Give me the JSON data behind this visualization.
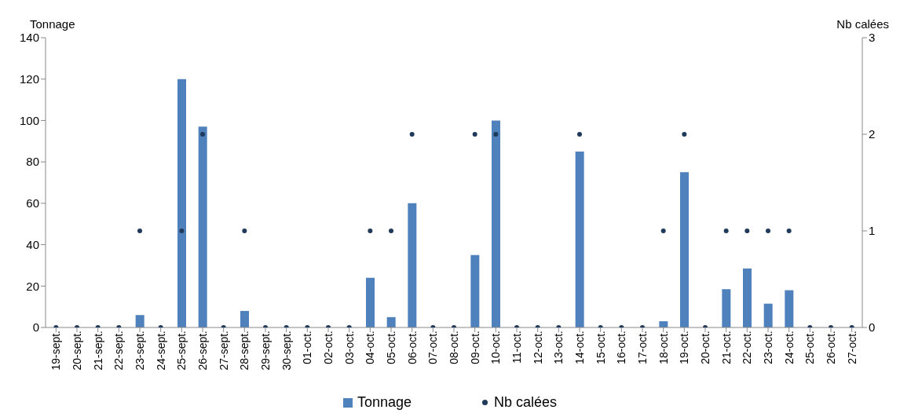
{
  "chart_data": {
    "type": "bar",
    "ylabel": "Tonnage",
    "y2label": "Nb calées",
    "categories": [
      "19-sept.",
      "20-sept.",
      "21-sept.",
      "22-sept.",
      "23-sept.",
      "24-sept.",
      "25-sept.",
      "26-sept.",
      "27-sept.",
      "28-sept.",
      "29-sept.",
      "30-sept.",
      "01-oct.",
      "02-oct.",
      "03-oct.",
      "04-oct.",
      "05-oct.",
      "06-oct.",
      "07-oct.",
      "08-oct.",
      "09-oct.",
      "10-oct.",
      "11-oct.",
      "12-oct.",
      "13-oct.",
      "14-oct.",
      "15-oct.",
      "16-oct.",
      "17-oct.",
      "18-oct.",
      "19-oct.",
      "20-oct.",
      "21-oct.",
      "22-oct.",
      "23-oct.",
      "24-oct.",
      "25-oct.",
      "26-oct.",
      "27-oct."
    ],
    "series": [
      {
        "name": "Tonnage",
        "color": "#4f81bd",
        "values": [
          0,
          0,
          0,
          0,
          6,
          0,
          120,
          97,
          0,
          8,
          0,
          0,
          0,
          0,
          0,
          24,
          5,
          60,
          0,
          0,
          35,
          100,
          0,
          0,
          0,
          85,
          0,
          0,
          0,
          3,
          75,
          0,
          18.5,
          28.5,
          11.5,
          18,
          0,
          0,
          0
        ]
      },
      {
        "name": "Nb calées",
        "type": "scatter",
        "axis": "y2",
        "color": "#1f3a5a",
        "values": [
          0,
          0,
          0,
          0,
          1,
          0,
          1,
          2,
          0,
          1,
          0,
          0,
          0,
          0,
          0,
          1,
          1,
          2,
          0,
          0,
          2,
          2,
          0,
          0,
          0,
          2,
          0,
          0,
          0,
          1,
          2,
          0,
          1,
          1,
          1,
          1,
          0,
          0,
          0
        ]
      }
    ],
    "ylim": [
      0,
      140
    ],
    "yticks": [
      0,
      20,
      40,
      60,
      80,
      100,
      120,
      140
    ],
    "y2lim": [
      0,
      3
    ],
    "y2ticks": [
      0,
      1,
      2,
      3
    ],
    "grid": false,
    "legend": "bottom",
    "marker": "circle"
  }
}
